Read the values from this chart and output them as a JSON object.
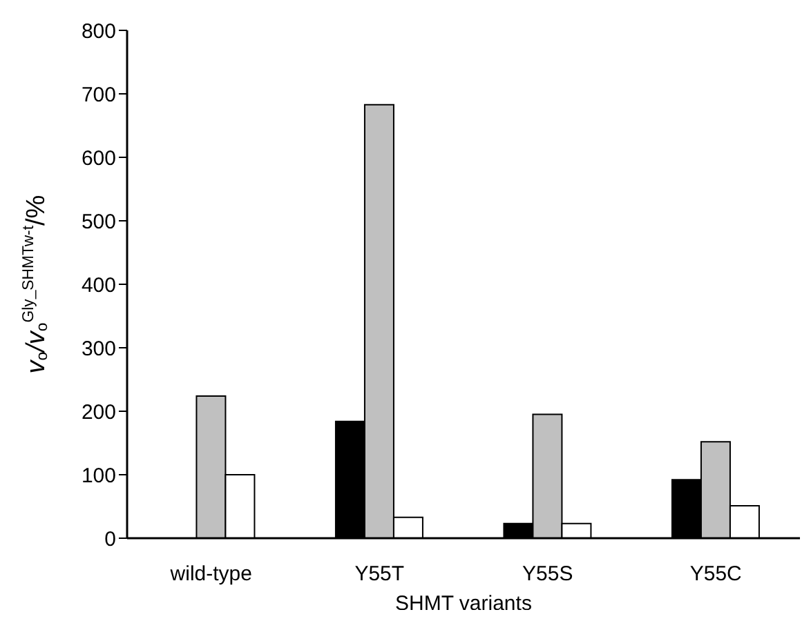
{
  "chart_data": {
    "type": "bar",
    "xlabel": "SHMT variants",
    "ylabel": "v$_{o}$/v$_{o}$$^{Gly_SHMTw-t}$/%",
    "categories": [
      "wild-type",
      "Y55T",
      "Y55S",
      "Y55C"
    ],
    "series": [
      {
        "color": "#000000",
        "values": [
          0,
          184,
          23,
          92
        ]
      },
      {
        "color": "#c0c0c0",
        "values": [
          224,
          683,
          195,
          152
        ]
      },
      {
        "color": "#ffffff",
        "values": [
          100,
          33,
          23,
          51
        ]
      }
    ],
    "ylim": [
      0,
      800
    ],
    "yticks": [
      0,
      100,
      200,
      300,
      400,
      500,
      600,
      700,
      800
    ],
    "grid": false,
    "legend": false
  }
}
